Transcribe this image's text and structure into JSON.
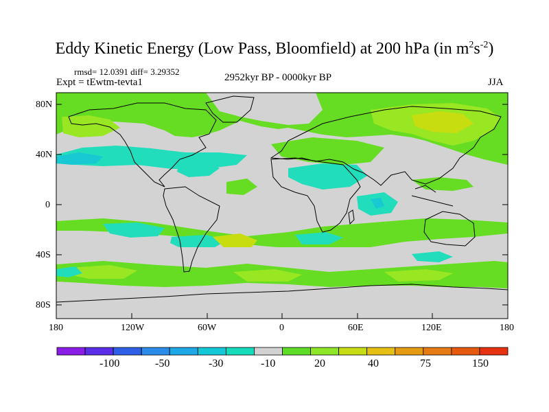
{
  "title": "Eddy Kinetic Energy (Low Pass, Bloomfield) at 200 hPa (in m",
  "title_sup1": "2",
  "title_mid": "s",
  "title_sup2": "-2",
  "title_end": ")",
  "stats": "rmsd= 12.0391 diff= 3.29352",
  "expt": "Expt = tEwtm-tevta1",
  "period": "2952kyr BP - 0000kyr BP",
  "season": "JJA",
  "lat_labels": [
    "80N",
    "40N",
    "0",
    "40S",
    "80S"
  ],
  "lon_labels": [
    "180",
    "120W",
    "60W",
    "0",
    "60E",
    "120E",
    "180"
  ],
  "colorbar": {
    "colors": [
      "#8a1ee6",
      "#5a2ee6",
      "#2f5fe6",
      "#2a8ce8",
      "#1ea8e6",
      "#14c8d8",
      "#16dcbc",
      "#d2d2d2",
      "#5fdc28",
      "#8ee628",
      "#c6dc14",
      "#e6c014",
      "#e69b14",
      "#e67a14",
      "#e65a10",
      "#e63210"
    ],
    "labels": [
      "-100",
      "-50",
      "-30",
      "-10",
      "20",
      "40",
      "75",
      "150"
    ]
  },
  "colors": {
    "neutral": "#d3d3d3",
    "pos_light": "#66dd22",
    "pos_mid": "#99e622",
    "pos_high": "#c8dd10",
    "neg_light": "#22ddbb",
    "neg_mid": "#18c8d2",
    "coast": "#000000"
  }
}
